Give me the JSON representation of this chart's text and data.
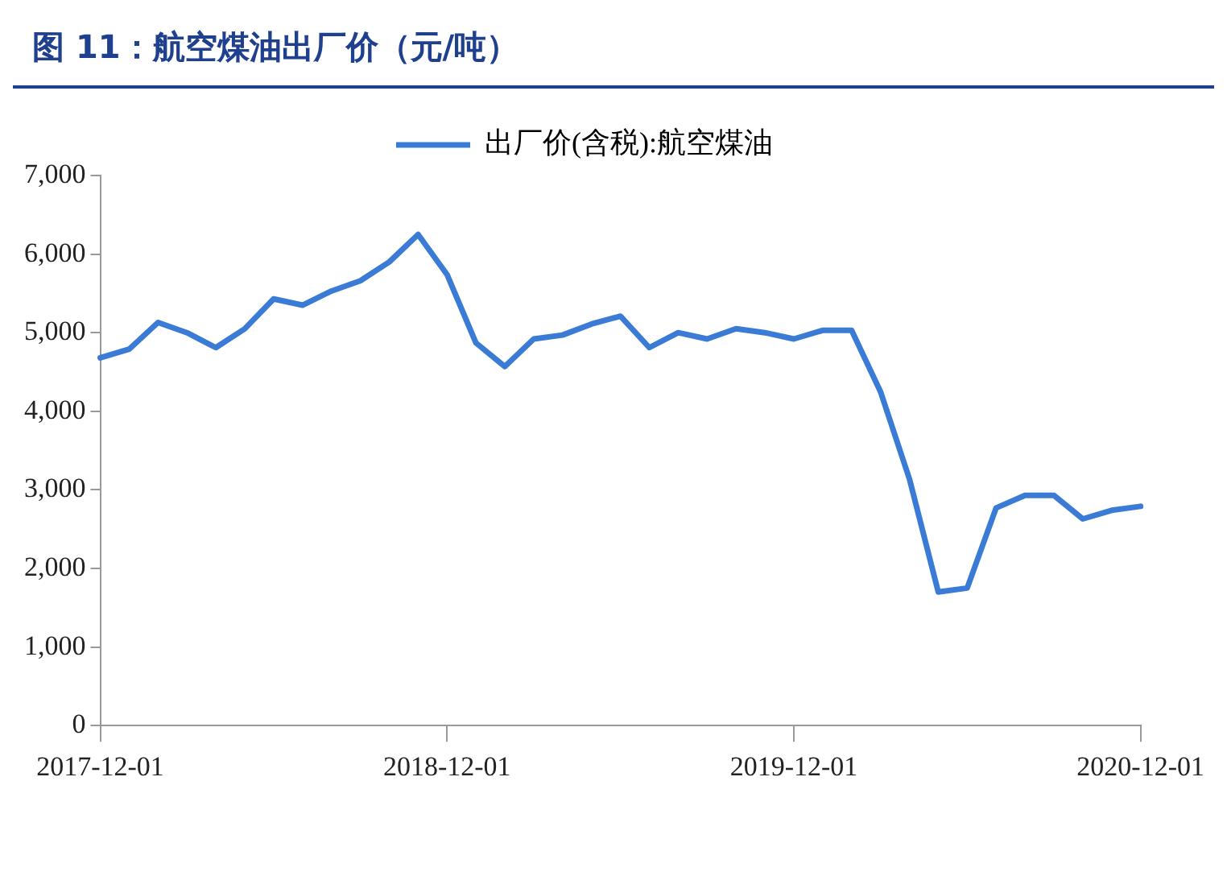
{
  "chart_data": {
    "type": "line",
    "title": "图 11：航空煤油出厂价（元/吨）",
    "categories": [
      "2017-12-01",
      null,
      null,
      null,
      null,
      null,
      null,
      null,
      null,
      null,
      null,
      null,
      "2018-12-01",
      null,
      null,
      null,
      null,
      null,
      null,
      null,
      null,
      null,
      null,
      null,
      "2019-12-01",
      null,
      null,
      null,
      null,
      null,
      null,
      null,
      null,
      null,
      null,
      null,
      "2020-12-01"
    ],
    "series": [
      {
        "name": "出厂价(含税):航空煤油",
        "color": "#3a7bd5",
        "values": [
          4680,
          4790,
          5130,
          5000,
          4810,
          5050,
          5430,
          5350,
          5530,
          5660,
          5900,
          6250,
          5740,
          4870,
          4570,
          4920,
          4970,
          5110,
          5210,
          4810,
          5000,
          4920,
          5050,
          5000,
          4920,
          5030,
          5030,
          4250,
          3140,
          1700,
          1750,
          2770,
          2930,
          2930,
          2630,
          2740,
          2790
        ]
      }
    ],
    "ylim": [
      0,
      7000
    ],
    "yticks": [
      {
        "value": 0,
        "label": "0"
      },
      {
        "value": 1000,
        "label": "1,000"
      },
      {
        "value": 2000,
        "label": "2,000"
      },
      {
        "value": 3000,
        "label": "3,000"
      },
      {
        "value": 4000,
        "label": "4,000"
      },
      {
        "value": 5000,
        "label": "5,000"
      },
      {
        "value": 6000,
        "label": "6,000"
      },
      {
        "value": 7000,
        "label": "7,000"
      }
    ],
    "legend": "top",
    "grid": false,
    "marker": "none",
    "line_style": "solid"
  }
}
